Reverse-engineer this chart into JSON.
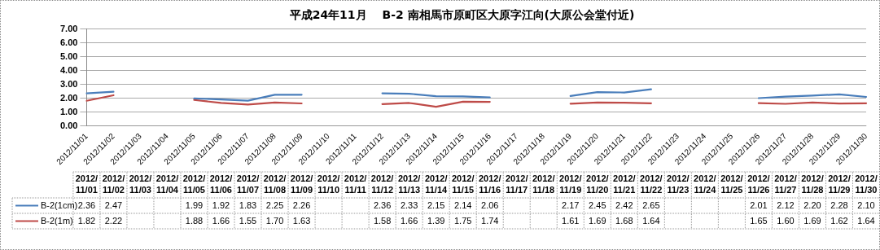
{
  "chart_data": {
    "type": "line",
    "title": "平成24年11月　 B-2 南相馬市原町区大原字江向(大原公会堂付近)",
    "categories": [
      "2012/11/01",
      "2012/11/02",
      "2012/11/03",
      "2012/11/04",
      "2012/11/05",
      "2012/11/06",
      "2012/11/07",
      "2012/11/08",
      "2012/11/09",
      "2012/11/10",
      "2012/11/11",
      "2012/11/12",
      "2012/11/13",
      "2012/11/14",
      "2012/11/15",
      "2012/11/16",
      "2012/11/17",
      "2012/11/18",
      "2012/11/19",
      "2012/11/20",
      "2012/11/21",
      "2012/11/22",
      "2012/11/23",
      "2012/11/24",
      "2012/11/25",
      "2012/11/26",
      "2012/11/27",
      "2012/11/28",
      "2012/11/29",
      "2012/11/30"
    ],
    "series": [
      {
        "name": "B-2(1cm)",
        "color": "#4a7ebb",
        "values": [
          2.36,
          2.47,
          null,
          null,
          1.99,
          1.92,
          1.83,
          2.25,
          2.26,
          null,
          null,
          2.36,
          2.33,
          2.15,
          2.14,
          2.06,
          null,
          null,
          2.17,
          2.45,
          2.42,
          2.65,
          null,
          null,
          null,
          2.01,
          2.12,
          2.2,
          2.28,
          2.1
        ],
        "value_labels": [
          "2.36",
          "2.47",
          null,
          null,
          "1.99",
          "1.92",
          "1.83",
          "2.25",
          "2.26",
          null,
          null,
          "2.36",
          "2.33",
          "2.15",
          "2.14",
          "2.06",
          null,
          null,
          "2.17",
          "2.45",
          "2.42",
          "2.65",
          null,
          null,
          null,
          "2.01",
          "2.12",
          "2.20",
          "2.28",
          "2.10"
        ]
      },
      {
        "name": "B-2(1m)",
        "color": "#be4b48",
        "values": [
          1.82,
          2.22,
          null,
          null,
          1.88,
          1.66,
          1.55,
          1.7,
          1.63,
          null,
          null,
          1.58,
          1.66,
          1.39,
          1.75,
          1.74,
          null,
          null,
          1.61,
          1.69,
          1.68,
          1.64,
          null,
          null,
          null,
          1.65,
          1.6,
          1.69,
          1.62,
          1.64
        ],
        "value_labels": [
          "1.82",
          "2.22",
          null,
          null,
          "1.88",
          "1.66",
          "1.55",
          "1.70",
          "1.63",
          null,
          null,
          "1.58",
          "1.66",
          "1.39",
          "1.75",
          "1.74",
          null,
          null,
          "1.61",
          "1.69",
          "1.68",
          "1.64",
          null,
          null,
          null,
          "1.65",
          "1.60",
          "1.69",
          "1.62",
          "1.64"
        ]
      }
    ],
    "ylim": [
      0,
      7
    ],
    "yticks": [
      {
        "value": 0,
        "label": "0.00"
      },
      {
        "value": 1,
        "label": "1.00"
      },
      {
        "value": 2,
        "label": "2.00"
      },
      {
        "value": 3,
        "label": "3.00"
      },
      {
        "value": 4,
        "label": "4.00"
      },
      {
        "value": 5,
        "label": "5.00"
      },
      {
        "value": 6,
        "label": "6.00"
      },
      {
        "value": 7,
        "label": "7.00"
      }
    ],
    "grid": "y",
    "marker": "none",
    "line_style": "solid",
    "legend": "bottom"
  }
}
